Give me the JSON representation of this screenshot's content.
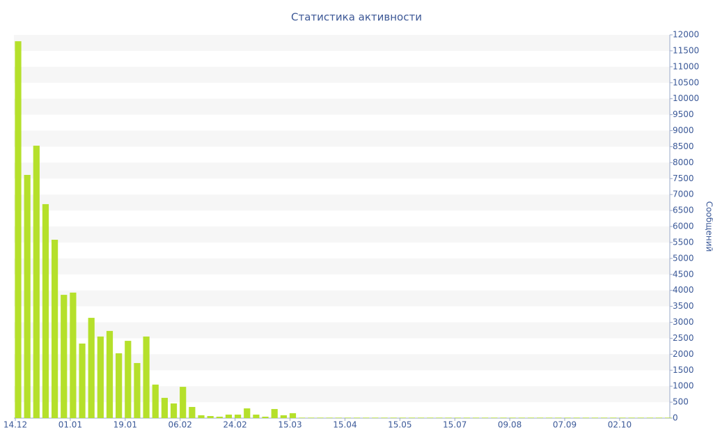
{
  "chart_data": {
    "type": "bar",
    "title": "Статистика активности",
    "y_label": "Сообщений",
    "color": "#b5e02b",
    "categories": [
      "14.12",
      null,
      null,
      null,
      null,
      null,
      "01.01",
      null,
      null,
      null,
      null,
      null,
      "19.01",
      null,
      null,
      null,
      null,
      null,
      "06.02",
      null,
      null,
      null,
      null,
      null,
      "24.02",
      null,
      null,
      null,
      null,
      null,
      "15.03",
      null,
      null,
      null,
      null,
      null,
      "15.04",
      null,
      null,
      null,
      null,
      null,
      "15.05",
      null,
      null,
      null,
      null,
      null,
      "15.07",
      null,
      null,
      null,
      null,
      null,
      "09.08",
      null,
      null,
      null,
      null,
      null,
      "07.09",
      null,
      null,
      null,
      null,
      null,
      "02.10",
      null,
      null,
      null,
      null,
      null
    ],
    "values": [
      11800,
      7615,
      8530,
      6700,
      5585,
      3860,
      3930,
      2335,
      3140,
      2555,
      2730,
      2030,
      2420,
      1725,
      2555,
      1050,
      635,
      460,
      980,
      350,
      90,
      65,
      45,
      110,
      110,
      305,
      110,
      45,
      285,
      90,
      155,
      15,
      15,
      15,
      15,
      15,
      15,
      15,
      15,
      15,
      15,
      15,
      15,
      15,
      15,
      15,
      15,
      15,
      15,
      15,
      15,
      15,
      15,
      15,
      15,
      15,
      15,
      15,
      15,
      15,
      15,
      15,
      15,
      15,
      15,
      15,
      15,
      15,
      15,
      15,
      15,
      15
    ],
    "ylim": [
      0,
      12000
    ],
    "yticks": [
      0,
      500,
      1000,
      1500,
      2000,
      2500,
      3000,
      3500,
      4000,
      4500,
      5000,
      5500,
      6000,
      6500,
      7000,
      7500,
      8000,
      8500,
      9000,
      9500,
      10000,
      10500,
      11000,
      11500,
      12000
    ],
    "grid": true
  }
}
